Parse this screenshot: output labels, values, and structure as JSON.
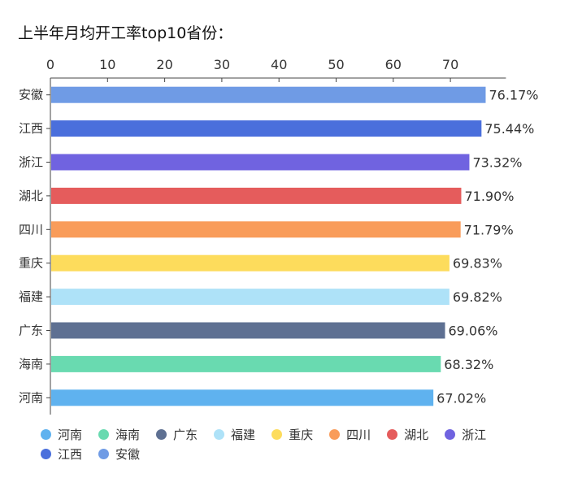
{
  "chart_data": {
    "type": "bar",
    "orientation": "horizontal",
    "title": "上半年月均开工率top10省份：",
    "categories": [
      "安徽",
      "江西",
      "浙江",
      "湖北",
      "四川",
      "重庆",
      "福建",
      "广东",
      "海南",
      "河南"
    ],
    "values": [
      76.17,
      75.44,
      73.32,
      71.9,
      71.79,
      69.83,
      69.82,
      69.06,
      68.32,
      67.02
    ],
    "value_labels": [
      "76.17%",
      "75.44%",
      "73.32%",
      "71.90%",
      "71.79%",
      "69.83%",
      "69.82%",
      "69.06%",
      "68.32%",
      "67.02%"
    ],
    "colors": [
      "#6f9be5",
      "#4a6fdc",
      "#7063e0",
      "#e55c5c",
      "#f99c5a",
      "#fddc5c",
      "#aee2f8",
      "#5e7092",
      "#69dab0",
      "#5fb2ef"
    ],
    "xticks": [
      0,
      10,
      20,
      30,
      40,
      50,
      60,
      70
    ],
    "xlim": [
      0,
      80
    ],
    "xaxis_position": "top",
    "grid": false,
    "legend_position": "bottom",
    "legend": [
      "河南",
      "海南",
      "广东",
      "福建",
      "重庆",
      "四川",
      "湖北",
      "浙江",
      "江西",
      "安徽"
    ],
    "legend_colors": [
      "#5fb2ef",
      "#69dab0",
      "#5e7092",
      "#aee2f8",
      "#fddc5c",
      "#f99c5a",
      "#e55c5c",
      "#7063e0",
      "#4a6fdc",
      "#6f9be5"
    ]
  }
}
